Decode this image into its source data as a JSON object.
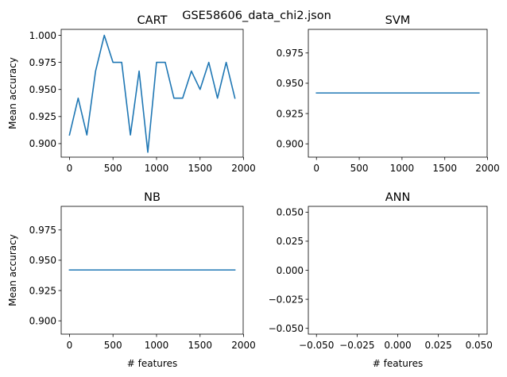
{
  "suptitle": "GSE58606_data_chi2.json",
  "chart_data": [
    {
      "type": "line",
      "title": "CART",
      "ylabel": "Mean accuracy",
      "xlabel": "",
      "xlim": [
        -95,
        1995
      ],
      "ylim": [
        0.8875,
        1.0055
      ],
      "xticks": [
        0,
        500,
        1000,
        1500,
        2000
      ],
      "yticks": [
        0.9,
        0.925,
        0.95,
        0.975,
        1.0
      ],
      "ytick_labels": [
        "0.900",
        "0.925",
        "0.950",
        "0.975",
        "1.000"
      ],
      "x": [
        0,
        100,
        200,
        300,
        400,
        500,
        600,
        700,
        800,
        900,
        1000,
        1100,
        1200,
        1300,
        1400,
        1500,
        1600,
        1700,
        1800,
        1900
      ],
      "y": [
        0.908,
        0.942,
        0.908,
        0.967,
        1.0,
        0.975,
        0.975,
        0.908,
        0.967,
        0.892,
        0.975,
        0.975,
        0.942,
        0.942,
        0.967,
        0.95,
        0.975,
        0.942,
        0.975,
        0.942
      ],
      "color": "#1f77b4"
    },
    {
      "type": "line",
      "title": "SVM",
      "ylabel": "",
      "xlabel": "",
      "xlim": [
        -95,
        1995
      ],
      "ylim": [
        0.889,
        0.9945
      ],
      "xticks": [
        0,
        500,
        1000,
        1500,
        2000
      ],
      "yticks": [
        0.9,
        0.925,
        0.95,
        0.975
      ],
      "ytick_labels": [
        "0.900",
        "0.925",
        "0.950",
        "0.975"
      ],
      "x": [
        0,
        1900
      ],
      "y": [
        0.942,
        0.942
      ],
      "color": "#1f77b4"
    },
    {
      "type": "line",
      "title": "NB",
      "ylabel": "Mean accuracy",
      "xlabel": "# features",
      "xlim": [
        -95,
        1995
      ],
      "ylim": [
        0.889,
        0.9945
      ],
      "xticks": [
        0,
        500,
        1000,
        1500,
        2000
      ],
      "yticks": [
        0.9,
        0.925,
        0.95,
        0.975
      ],
      "ytick_labels": [
        "0.900",
        "0.925",
        "0.950",
        "0.975"
      ],
      "x": [
        0,
        1900
      ],
      "y": [
        0.942,
        0.942
      ],
      "color": "#1f77b4"
    },
    {
      "type": "line",
      "title": "ANN",
      "ylabel": "",
      "xlabel": "# features",
      "xlim": [
        -0.055,
        0.055
      ],
      "ylim": [
        -0.055,
        0.055
      ],
      "xticks": [
        -0.05,
        -0.025,
        0.0,
        0.025,
        0.05
      ],
      "xtick_labels": [
        "−0.050",
        "−0.025",
        "0.000",
        "0.025",
        "0.050"
      ],
      "yticks": [
        -0.05,
        -0.025,
        0.0,
        0.025,
        0.05
      ],
      "ytick_labels": [
        "−0.050",
        "−0.025",
        "0.000",
        "0.025",
        "0.050"
      ],
      "x": [],
      "y": [],
      "color": "#1f77b4"
    }
  ]
}
